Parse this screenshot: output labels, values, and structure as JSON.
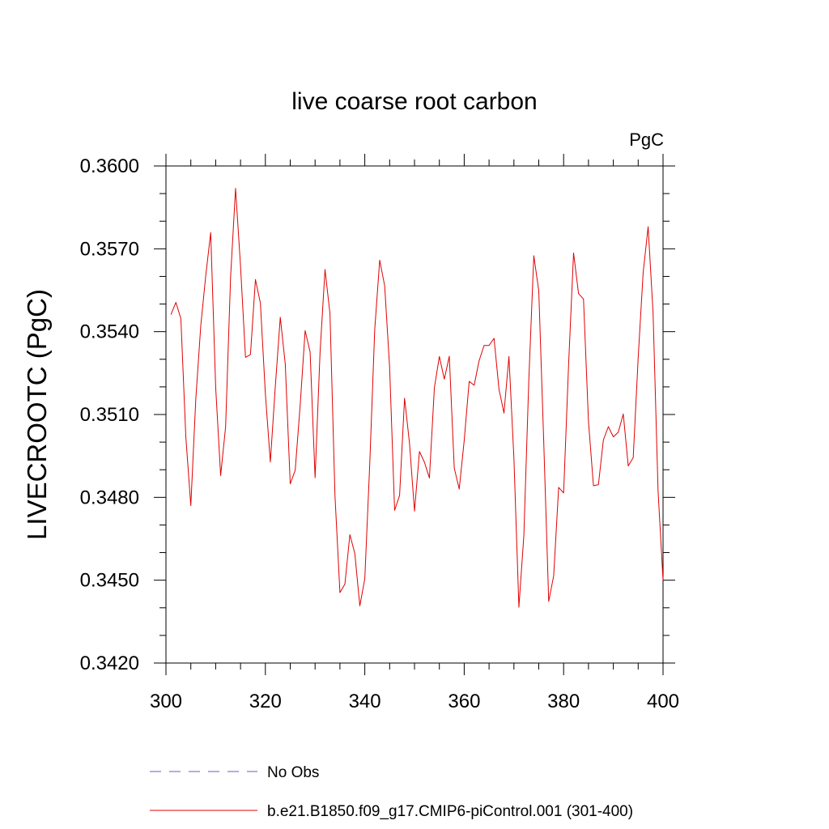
{
  "chart_data": {
    "type": "line",
    "title": "live coarse root carbon",
    "units": "PgC",
    "ylabel": "LIVECROOTC  (PgC)",
    "xlabel": "",
    "xlim": [
      300,
      400
    ],
    "ylim": [
      0.342,
      0.36
    ],
    "x_ticks": [
      300,
      320,
      340,
      360,
      380,
      400
    ],
    "x_tick_labels": [
      "300",
      "320",
      "340",
      "360",
      "380",
      "400"
    ],
    "y_ticks": [
      0.342,
      0.345,
      0.348,
      0.351,
      0.354,
      0.357,
      0.36
    ],
    "y_tick_labels": [
      "0.3420",
      "0.3450",
      "0.3480",
      "0.3510",
      "0.3540",
      "0.3570",
      "0.3600"
    ],
    "legend": [
      {
        "label": "No Obs",
        "color": "#6a5acd",
        "style": "dashed"
      },
      {
        "label": "b.e21.B1850.f09_g17.CMIP6-piControl.001 (301-400)",
        "color": "#e00000",
        "style": "solid"
      }
    ],
    "series": [
      {
        "name": "b.e21.B1850.f09_g17.CMIP6-piControl.001 (301-400)",
        "color": "#e00000",
        "x": [
          301,
          302,
          303,
          304,
          305,
          306,
          307,
          308,
          309,
          310,
          311,
          312,
          313,
          314,
          315,
          316,
          317,
          318,
          319,
          320,
          321,
          322,
          323,
          324,
          325,
          326,
          327,
          328,
          329,
          330,
          331,
          332,
          333,
          334,
          335,
          336,
          337,
          338,
          339,
          340,
          341,
          342,
          343,
          344,
          345,
          346,
          347,
          348,
          349,
          350,
          351,
          352,
          353,
          354,
          355,
          356,
          357,
          358,
          359,
          360,
          361,
          362,
          363,
          364,
          365,
          366,
          367,
          368,
          369,
          370,
          371,
          372,
          373,
          374,
          375,
          376,
          377,
          378,
          379,
          380,
          381,
          382,
          383,
          384,
          385,
          386,
          387,
          388,
          389,
          390,
          391,
          392,
          393,
          394,
          395,
          396,
          397,
          398,
          399,
          400
        ],
        "values": [
          0.35462,
          0.35506,
          0.35447,
          0.35018,
          0.3477,
          0.35155,
          0.35421,
          0.35602,
          0.35759,
          0.35199,
          0.34879,
          0.35055,
          0.35597,
          0.35919,
          0.35638,
          0.35307,
          0.35317,
          0.35589,
          0.35503,
          0.35175,
          0.34928,
          0.35202,
          0.35452,
          0.35283,
          0.34849,
          0.34898,
          0.35134,
          0.35404,
          0.35326,
          0.34871,
          0.35325,
          0.35625,
          0.35464,
          0.34807,
          0.34455,
          0.34486,
          0.34665,
          0.34596,
          0.34407,
          0.34505,
          0.34922,
          0.35408,
          0.35659,
          0.35566,
          0.35269,
          0.34753,
          0.34807,
          0.35159,
          0.34995,
          0.3475,
          0.34966,
          0.34927,
          0.3487,
          0.35197,
          0.3531,
          0.35228,
          0.35311,
          0.34906,
          0.3483,
          0.35006,
          0.3522,
          0.35206,
          0.35295,
          0.3535,
          0.3535,
          0.35376,
          0.35191,
          0.35105,
          0.3531,
          0.34942,
          0.34402,
          0.34662,
          0.35226,
          0.35675,
          0.35548,
          0.35001,
          0.34423,
          0.34516,
          0.34836,
          0.34816,
          0.3528,
          0.35685,
          0.35538,
          0.35518,
          0.35075,
          0.34842,
          0.34846,
          0.35008,
          0.35056,
          0.35019,
          0.35036,
          0.35102,
          0.34914,
          0.34944,
          0.35306,
          0.35614,
          0.3578,
          0.35466,
          0.34823,
          0.345
        ]
      }
    ]
  }
}
